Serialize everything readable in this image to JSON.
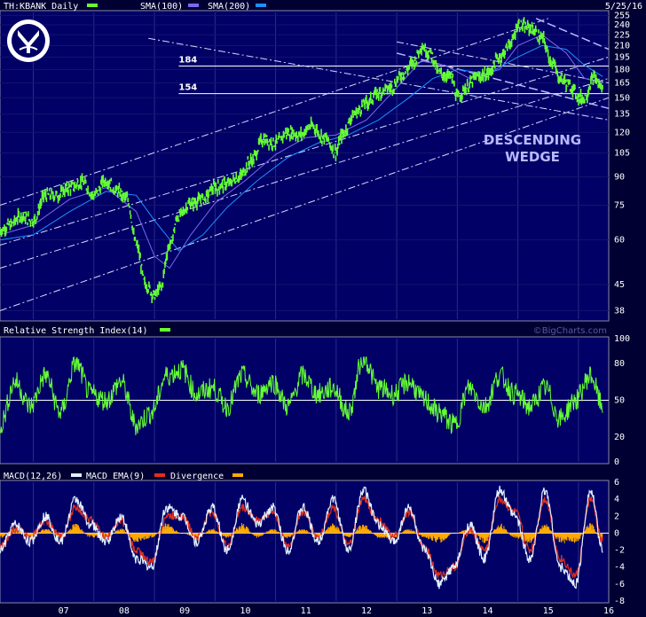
{
  "chart_data": [
    {
      "type": "line",
      "panel": "price",
      "title": "TH:KBANK Daily",
      "date": "5/25/16",
      "scale": "log",
      "ylim": [
        36,
        260
      ],
      "y_ticks": [
        38,
        45,
        60,
        75,
        90,
        105,
        120,
        135,
        150,
        165,
        180,
        195,
        210,
        225,
        240,
        255
      ],
      "x_ticks": [
        "07",
        "08",
        "09",
        "10",
        "11",
        "12",
        "13",
        "14",
        "15",
        "16"
      ],
      "legend": [
        {
          "label": "TH:KBANK Daily",
          "color": "#66ff33"
        },
        {
          "label": "SMA(100)",
          "color": "#7b68ee"
        },
        {
          "label": "SMA(200)",
          "color": "#1e90ff"
        }
      ],
      "series": [
        {
          "name": "TH:KBANK Daily",
          "color": "#66ff33",
          "style": "candles",
          "x": [
            2006.45,
            2006.6,
            2006.8,
            2007.0,
            2007.2,
            2007.4,
            2007.6,
            2007.8,
            2008.0,
            2008.2,
            2008.4,
            2008.55,
            2008.7,
            2008.85,
            2009.0,
            2009.1,
            2009.25,
            2009.4,
            2009.6,
            2009.8,
            2010.0,
            2010.2,
            2010.4,
            2010.6,
            2010.8,
            2011.0,
            2011.2,
            2011.4,
            2011.6,
            2011.8,
            2012.0,
            2012.1,
            2012.3,
            2012.5,
            2012.7,
            2012.9,
            2013.1,
            2013.3,
            2013.4,
            2013.55,
            2013.7,
            2013.9,
            2014.0,
            2014.15,
            2014.3,
            2014.5,
            2014.7,
            2014.9,
            2015.0,
            2015.2,
            2015.4,
            2015.55,
            2015.7,
            2015.9,
            2016.0,
            2016.1,
            2016.25,
            2016.4
          ],
          "y": [
            64,
            66,
            70,
            68,
            80,
            80,
            84,
            87,
            80,
            88,
            82,
            78,
            58,
            45,
            42,
            44,
            58,
            70,
            76,
            78,
            84,
            86,
            90,
            100,
            115,
            112,
            120,
            118,
            125,
            116,
            106,
            118,
            135,
            145,
            155,
            160,
            175,
            190,
            210,
            200,
            175,
            172,
            150,
            160,
            170,
            175,
            195,
            215,
            240,
            235,
            220,
            190,
            170,
            160,
            150,
            150,
            170,
            160
          ]
        },
        {
          "name": "SMA(100)",
          "color": "#7b68ee",
          "x": [
            2006.45,
            2007.0,
            2007.6,
            2008.2,
            2008.7,
            2009.0,
            2009.25,
            2009.6,
            2010.0,
            2010.5,
            2011.0,
            2011.5,
            2012.0,
            2012.5,
            2013.0,
            2013.4,
            2013.8,
            2014.2,
            2014.7,
            2015.0,
            2015.4,
            2015.8,
            2016.1,
            2016.4
          ],
          "y": [
            62,
            66,
            78,
            84,
            72,
            54,
            50,
            62,
            76,
            88,
            104,
            116,
            118,
            130,
            160,
            190,
            185,
            170,
            180,
            210,
            225,
            200,
            170,
            165
          ]
        },
        {
          "name": "SMA(200)",
          "color": "#1e90ff",
          "x": [
            2006.45,
            2007.0,
            2007.6,
            2008.2,
            2008.7,
            2009.0,
            2009.4,
            2009.8,
            2010.2,
            2010.7,
            2011.2,
            2011.7,
            2012.2,
            2012.7,
            2013.2,
            2013.6,
            2014.0,
            2014.5,
            2015.0,
            2015.4,
            2015.8,
            2016.1,
            2016.4
          ],
          "y": [
            60,
            62,
            72,
            82,
            80,
            68,
            56,
            62,
            74,
            88,
            102,
            112,
            118,
            130,
            150,
            170,
            180,
            175,
            195,
            210,
            205,
            185,
            172
          ]
        }
      ],
      "reference_levels": [
        {
          "label": "184",
          "value": 184
        },
        {
          "label": "154",
          "value": 154
        }
      ],
      "annotations": [
        "DESCENDING",
        "WEDGE"
      ],
      "watermark": "©BigCharts.com"
    },
    {
      "type": "line",
      "panel": "rsi",
      "title": "Relative Strength Index(14)",
      "ylim": [
        0,
        100
      ],
      "y_ticks": [
        0,
        20,
        50,
        80,
        100
      ],
      "reference_line": 50,
      "series": [
        {
          "name": "Relative Strength Index(14)",
          "color": "#66ff33",
          "x": [
            2006.45,
            2006.7,
            2006.95,
            2007.2,
            2007.45,
            2007.7,
            2007.95,
            2008.2,
            2008.45,
            2008.7,
            2008.95,
            2009.2,
            2009.45,
            2009.7,
            2009.95,
            2010.2,
            2010.45,
            2010.7,
            2010.95,
            2011.2,
            2011.45,
            2011.7,
            2011.95,
            2012.2,
            2012.45,
            2012.7,
            2012.95,
            2013.2,
            2013.45,
            2013.7,
            2013.95,
            2014.2,
            2014.45,
            2014.7,
            2014.95,
            2015.2,
            2015.45,
            2015.7,
            2015.95,
            2016.2,
            2016.4
          ],
          "y": [
            30,
            65,
            45,
            70,
            40,
            80,
            55,
            50,
            65,
            30,
            40,
            70,
            75,
            55,
            60,
            45,
            70,
            55,
            65,
            45,
            70,
            55,
            60,
            40,
            85,
            60,
            55,
            65,
            50,
            40,
            30,
            60,
            45,
            70,
            55,
            45,
            60,
            35,
            50,
            70,
            45
          ]
        }
      ]
    },
    {
      "type": "line",
      "panel": "macd",
      "title": "MACD(12,26)",
      "ylim": [
        -8,
        6
      ],
      "y_ticks": [
        -8,
        -6,
        -4,
        -2,
        0,
        2,
        4,
        6
      ],
      "legend": [
        {
          "label": "MACD(12,26)",
          "color": "#e0f0ff"
        },
        {
          "label": "MACD EMA(9)",
          "color": "#e03020"
        },
        {
          "label": "Divergence",
          "color": "#ffaa00"
        }
      ],
      "series": [
        {
          "name": "MACD(12,26)",
          "color": "#e0f0ff",
          "x": [
            2006.45,
            2006.7,
            2006.95,
            2007.2,
            2007.45,
            2007.7,
            2007.95,
            2008.2,
            2008.45,
            2008.7,
            2008.95,
            2009.2,
            2009.45,
            2009.7,
            2009.95,
            2010.2,
            2010.45,
            2010.7,
            2010.95,
            2011.2,
            2011.45,
            2011.7,
            2011.95,
            2012.2,
            2012.45,
            2012.7,
            2012.95,
            2013.2,
            2013.45,
            2013.7,
            2013.95,
            2014.2,
            2014.45,
            2014.7,
            2014.95,
            2015.2,
            2015.45,
            2015.7,
            2015.95,
            2016.2,
            2016.4
          ],
          "y": [
            -2,
            1,
            -1,
            2,
            -1,
            4,
            1,
            -1,
            2,
            -3,
            -4,
            3,
            2,
            -1,
            3,
            -2,
            4,
            1,
            3,
            -2,
            3,
            -1,
            4,
            -2,
            5,
            1,
            -1,
            3,
            -2,
            -6,
            -4,
            1,
            -3,
            5,
            2,
            -3,
            5,
            -4,
            -6,
            5,
            -2
          ]
        },
        {
          "name": "MACD EMA(9)",
          "color": "#e03020",
          "x": [
            2006.45,
            2006.7,
            2006.95,
            2007.2,
            2007.45,
            2007.7,
            2007.95,
            2008.2,
            2008.45,
            2008.7,
            2008.95,
            2009.2,
            2009.45,
            2009.7,
            2009.95,
            2010.2,
            2010.45,
            2010.7,
            2010.95,
            2011.2,
            2011.45,
            2011.7,
            2011.95,
            2012.2,
            2012.45,
            2012.7,
            2012.95,
            2013.2,
            2013.45,
            2013.7,
            2013.95,
            2014.2,
            2014.45,
            2014.7,
            2014.95,
            2015.2,
            2015.45,
            2015.7,
            2015.95,
            2016.2,
            2016.4
          ],
          "y": [
            -1.5,
            0.5,
            -0.5,
            1.5,
            -0.5,
            3,
            1.5,
            -0.5,
            1.5,
            -2,
            -3.5,
            2,
            2,
            -0.5,
            2.5,
            -1.5,
            3,
            1.5,
            2.5,
            -1.5,
            2.5,
            -0.5,
            3,
            -1.5,
            4,
            1.5,
            -0.5,
            2.5,
            -1.5,
            -5,
            -4,
            0.5,
            -2,
            4,
            2.5,
            -2,
            4,
            -3,
            -5,
            4,
            -1
          ]
        },
        {
          "name": "Divergence",
          "color": "#ffaa00",
          "x": [
            2006.45,
            2006.7,
            2006.95,
            2007.2,
            2007.45,
            2007.7,
            2007.95,
            2008.2,
            2008.45,
            2008.7,
            2008.95,
            2009.2,
            2009.45,
            2009.7,
            2009.95,
            2010.2,
            2010.45,
            2010.7,
            2010.95,
            2011.2,
            2011.45,
            2011.7,
            2011.95,
            2012.2,
            2012.45,
            2012.7,
            2012.95,
            2013.2,
            2013.45,
            2013.7,
            2013.95,
            2014.2,
            2014.45,
            2014.7,
            2014.95,
            2015.2,
            2015.45,
            2015.7,
            2015.95,
            2016.2,
            2016.4
          ],
          "y": [
            -0.5,
            0.5,
            -0.5,
            0.5,
            -0.5,
            1,
            -0.5,
            -0.5,
            0.5,
            -1,
            -0.5,
            1,
            0,
            -0.5,
            0.5,
            -0.5,
            1,
            -0.5,
            0.5,
            -0.5,
            0.5,
            -0.5,
            1,
            -0.5,
            1,
            -0.5,
            -0.5,
            0.5,
            -0.5,
            -1,
            0,
            0.5,
            -1,
            1,
            -0.5,
            -1,
            1,
            -1,
            -1,
            1,
            -1
          ]
        }
      ]
    }
  ]
}
